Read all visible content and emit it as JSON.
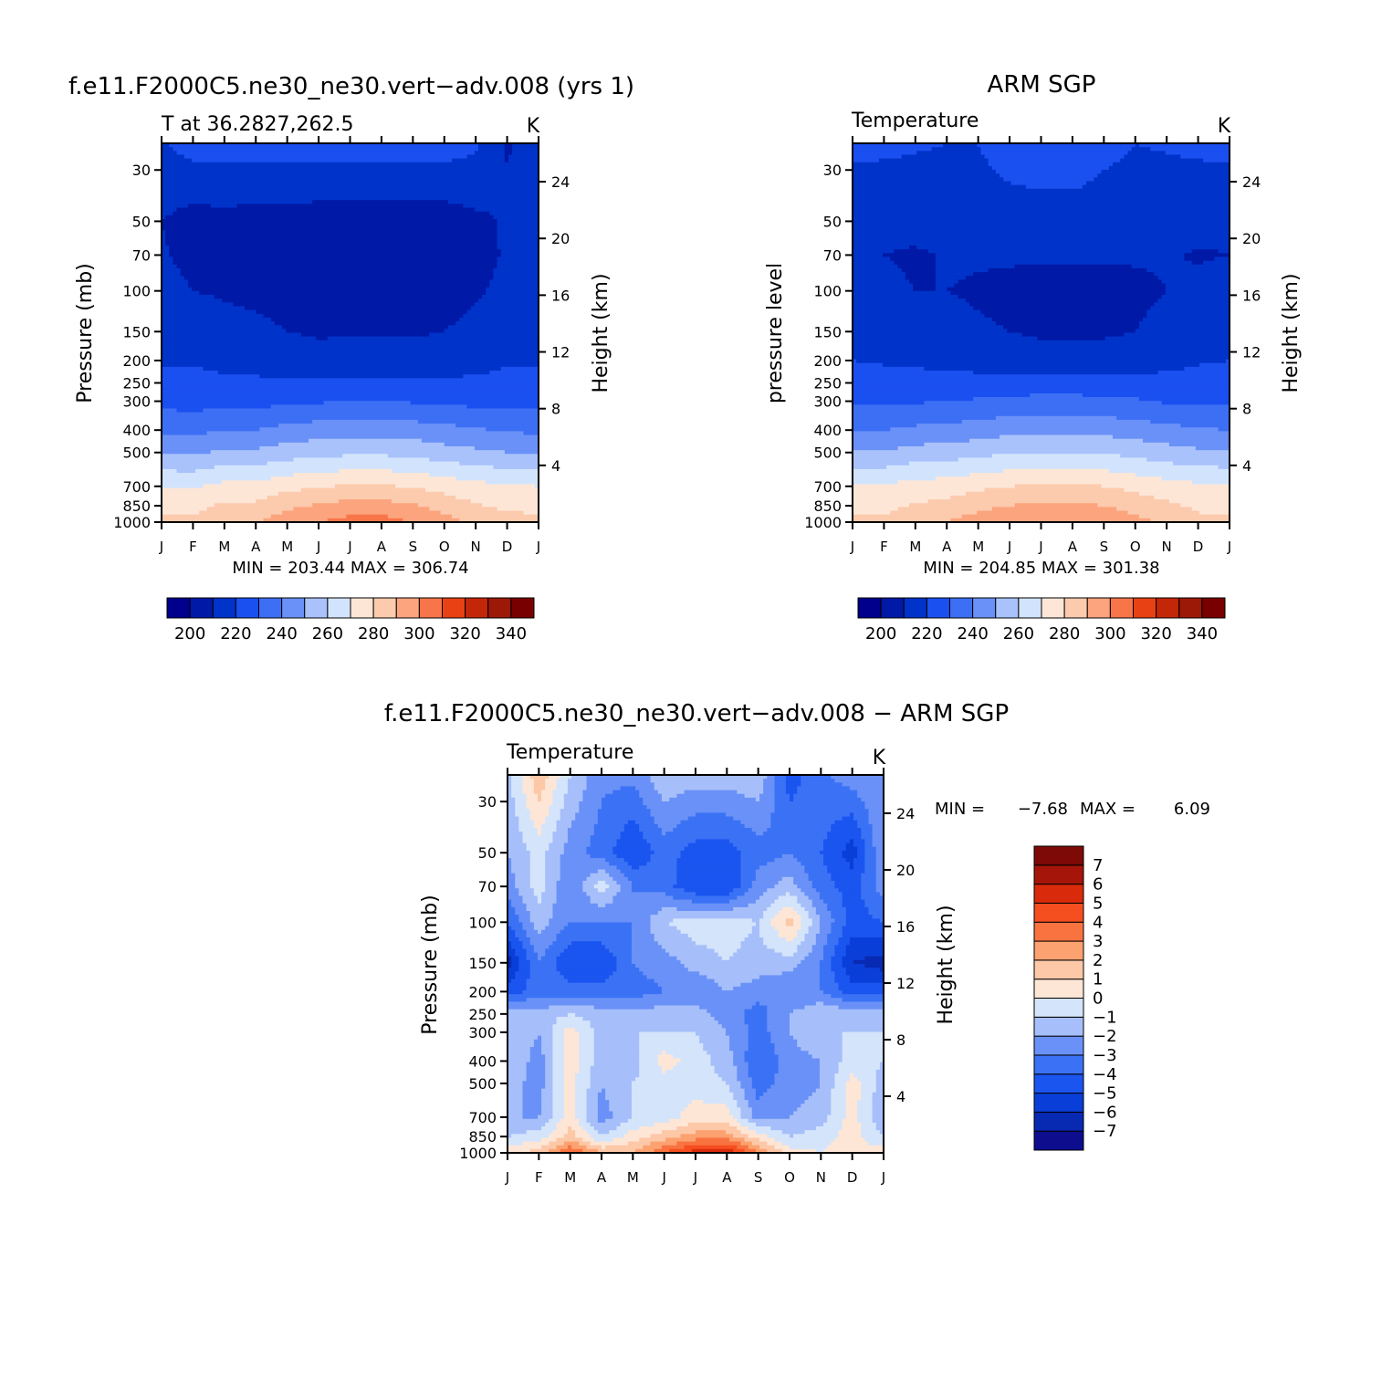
{
  "palette": {
    "temperature": [
      "#00008c",
      "#0019a6",
      "#0033c9",
      "#1a4ff0",
      "#3d6ff5",
      "#6a91f7",
      "#a9c2fb",
      "#d2e4fd",
      "#fde6d6",
      "#fccaad",
      "#fca47d",
      "#f8754a",
      "#e84214",
      "#c42608",
      "#9c1908",
      "#780000"
    ],
    "difference": [
      "#0d0d8e",
      "#0829b2",
      "#0a3ed8",
      "#1a55f0",
      "#3b72f5",
      "#6a91f7",
      "#a6bffa",
      "#d4e4fb",
      "#fde6d6",
      "#fdc8a8",
      "#fba270",
      "#f87340",
      "#f54e1f",
      "#d92a0c",
      "#a61509",
      "#7d0a06"
    ]
  },
  "panels": [
    {
      "id": "model",
      "title": "f.e11.F2000C5.ne30_ne30.vert−adv.008 (yrs 1)",
      "left_label": "T at 36.2827,262.5",
      "right_label": "K",
      "ylabel": "Pressure (mb)",
      "ylabel_right": "Height (km)",
      "minmax": "MIN = 203.44 MAX = 306.74"
    },
    {
      "id": "obs",
      "title": "ARM SGP",
      "left_label": "Temperature",
      "right_label": "K",
      "ylabel": "pressure level",
      "ylabel_right": "Height (km)",
      "minmax": "MIN = 204.85 MAX = 301.38"
    },
    {
      "id": "diff",
      "title": "f.e11.F2000C5.ne30_ne30.vert−adv.008 − ARM SGP",
      "left_label": "Temperature",
      "right_label": "K",
      "ylabel": "Pressure (mb)",
      "ylabel_right": "Height (km)",
      "minmax_min": "MIN =",
      "minmax_min_val": "−7.68",
      "minmax_max": "MAX =",
      "minmax_max_val": "6.09"
    }
  ],
  "chart_data": [
    {
      "type": "heatmap",
      "title": "f.e11.F2000C5.ne30_ne30.vert−adv.008 (yrs 1)",
      "variable": "T at 36.2827,262.5",
      "units": "K",
      "xlabel": "",
      "ylabel": "Pressure (mb)",
      "ylabel_right": "Height (km)",
      "x_ticks": [
        "J",
        "F",
        "M",
        "A",
        "M",
        "J",
        "J",
        "A",
        "S",
        "O",
        "N",
        "D",
        "J"
      ],
      "y_ticks": [
        30,
        50,
        70,
        100,
        150,
        200,
        250,
        300,
        400,
        500,
        700,
        850,
        1000
      ],
      "y_ticks_right": [
        24,
        20,
        16,
        12,
        8,
        4
      ],
      "y_scale": "log",
      "ylim": [
        1000,
        23
      ],
      "colorbar_levels": [
        195,
        200,
        205,
        210,
        215,
        220,
        225,
        230,
        235,
        240,
        245,
        250,
        255,
        260,
        265,
        270,
        275,
        280,
        285,
        290,
        295,
        300,
        305,
        310,
        315,
        320,
        325,
        330,
        335,
        340,
        345
      ],
      "colorbar_labels": [
        "200",
        "220",
        "240",
        "260",
        "280",
        "300",
        "320",
        "340"
      ],
      "min": 203.44,
      "max": 306.74,
      "months": [
        "Jan",
        "Feb",
        "Mar",
        "Apr",
        "May",
        "Jun",
        "Jul",
        "Aug",
        "Sep",
        "Oct",
        "Nov",
        "Dec",
        "Jan"
      ],
      "levels_mb": [
        30,
        50,
        70,
        100,
        150,
        200,
        250,
        300,
        400,
        500,
        700,
        850,
        1000
      ],
      "values": [
        [
          216,
          218,
          218,
          218,
          218,
          218,
          218,
          218,
          218,
          218,
          217,
          210,
          212
        ],
        [
          210,
          206,
          207,
          206,
          206,
          205,
          205,
          205,
          205,
          205,
          208,
          211,
          210
        ],
        [
          211,
          207,
          206,
          205,
          205,
          205,
          205,
          205,
          205,
          205,
          207,
          211,
          211
        ],
        [
          214,
          210,
          209,
          208,
          207,
          206,
          206,
          206,
          206,
          207,
          209,
          212,
          214
        ],
        [
          217,
          215,
          213,
          212,
          210,
          209,
          209,
          209,
          209,
          210,
          212,
          215,
          217
        ],
        [
          219,
          219,
          217,
          216,
          214,
          213,
          214,
          214,
          214,
          214,
          216,
          219,
          219
        ],
        [
          223,
          223,
          222,
          222,
          221,
          222,
          222,
          222,
          222,
          222,
          222,
          223,
          223
        ],
        [
          227,
          226,
          227,
          227,
          228,
          229,
          230,
          230,
          229,
          228,
          227,
          226,
          227
        ],
        [
          238,
          237,
          240,
          240,
          243,
          245,
          246,
          246,
          245,
          243,
          241,
          239,
          238
        ],
        [
          249,
          248,
          252,
          252,
          255,
          257,
          258,
          258,
          257,
          254,
          252,
          250,
          249
        ],
        [
          270,
          269,
          273,
          273,
          277,
          279,
          281,
          281,
          279,
          276,
          273,
          271,
          270
        ],
        [
          277,
          276,
          282,
          282,
          288,
          291,
          294,
          294,
          291,
          286,
          281,
          278,
          277
        ],
        [
          283,
          282,
          288,
          289,
          296,
          300,
          304,
          304,
          300,
          294,
          288,
          284,
          283
        ]
      ]
    },
    {
      "type": "heatmap",
      "title": "ARM SGP",
      "variable": "Temperature",
      "units": "K",
      "xlabel": "",
      "ylabel": "pressure level",
      "ylabel_right": "Height (km)",
      "x_ticks": [
        "J",
        "F",
        "M",
        "A",
        "M",
        "J",
        "J",
        "A",
        "S",
        "O",
        "N",
        "D",
        "J"
      ],
      "y_ticks": [
        30,
        50,
        70,
        100,
        150,
        200,
        250,
        300,
        400,
        500,
        700,
        850,
        1000
      ],
      "y_ticks_right": [
        24,
        20,
        16,
        12,
        8,
        4
      ],
      "y_scale": "log",
      "ylim": [
        1000,
        23
      ],
      "colorbar_levels": [
        195,
        200,
        205,
        210,
        215,
        220,
        225,
        230,
        235,
        240,
        245,
        250,
        255,
        260,
        265,
        270,
        275,
        280,
        285,
        290,
        295,
        300,
        305,
        310,
        315,
        320,
        325,
        330,
        335,
        340,
        345
      ],
      "colorbar_labels": [
        "200",
        "220",
        "240",
        "260",
        "280",
        "300",
        "320",
        "340"
      ],
      "min": 204.85,
      "max": 301.38,
      "months": [
        "Jan",
        "Feb",
        "Mar",
        "Apr",
        "May",
        "Jun",
        "Jul",
        "Aug",
        "Sep",
        "Oct",
        "Nov",
        "Dec",
        "Jan"
      ],
      "levels_mb": [
        30,
        50,
        70,
        100,
        150,
        200,
        250,
        300,
        400,
        500,
        700,
        850,
        1000
      ],
      "values": [
        [
          219,
          219,
          219,
          219,
          219,
          221,
          222,
          222,
          220,
          219,
          219,
          219,
          219
        ],
        [
          212,
          214,
          216,
          217,
          217,
          217,
          217,
          217,
          217,
          217,
          216,
          214,
          212
        ],
        [
          210,
          210,
          208,
          211,
          211,
          211,
          211,
          211,
          211,
          211,
          211,
          209,
          210
        ],
        [
          214,
          213,
          210,
          210,
          209,
          208,
          207,
          207,
          207,
          208,
          210,
          213,
          214
        ],
        [
          217,
          216,
          215,
          213,
          211,
          210,
          209,
          209,
          209,
          210,
          213,
          216,
          217
        ],
        [
          220,
          219,
          218,
          217,
          215,
          214,
          213,
          213,
          213,
          214,
          216,
          219,
          220
        ],
        [
          224,
          224,
          224,
          224,
          224,
          224,
          225,
          225,
          224,
          224,
          224,
          224,
          224
        ],
        [
          228,
          228,
          229,
          230,
          231,
          232,
          233,
          233,
          232,
          231,
          229,
          228,
          228
        ],
        [
          240,
          240,
          242,
          243,
          245,
          247,
          248,
          248,
          247,
          245,
          243,
          241,
          240
        ],
        [
          251,
          251,
          254,
          255,
          257,
          259,
          260,
          260,
          259,
          257,
          254,
          252,
          251
        ],
        [
          271,
          271,
          274,
          275,
          278,
          280,
          281,
          281,
          280,
          277,
          274,
          272,
          271
        ],
        [
          277,
          277,
          281,
          283,
          287,
          290,
          292,
          292,
          290,
          286,
          282,
          278,
          277
        ],
        [
          282,
          282,
          287,
          290,
          295,
          298,
          301,
          301,
          298,
          293,
          288,
          283,
          282
        ]
      ]
    },
    {
      "type": "heatmap",
      "title": "f.e11.F2000C5.ne30_ne30.vert−adv.008 − ARM SGP",
      "variable": "Temperature",
      "units": "K",
      "xlabel": "",
      "ylabel": "Pressure (mb)",
      "ylabel_right": "Height (km)",
      "x_ticks": [
        "J",
        "F",
        "M",
        "A",
        "M",
        "J",
        "J",
        "A",
        "S",
        "O",
        "N",
        "D",
        "J"
      ],
      "y_ticks": [
        30,
        50,
        70,
        100,
        150,
        200,
        250,
        300,
        400,
        500,
        700,
        850,
        1000
      ],
      "y_ticks_right": [
        24,
        20,
        16,
        12,
        8,
        4
      ],
      "y_scale": "log",
      "ylim": [
        1000,
        23
      ],
      "colorbar_levels": [
        -8,
        -7,
        -6,
        -5,
        -4,
        -3,
        -2,
        -1,
        0,
        1,
        2,
        3,
        4,
        5,
        6,
        7,
        8
      ],
      "colorbar_labels": [
        "7",
        "6",
        "5",
        "4",
        "3",
        "2",
        "1",
        "0",
        "−1",
        "−2",
        "−3",
        "−4",
        "−5",
        "−6",
        "−7"
      ],
      "colorbar_orientation": "vertical",
      "min": -7.68,
      "max": 6.09,
      "months": [
        "Jan",
        "Feb",
        "Mar",
        "Apr",
        "May",
        "Jun",
        "Jul",
        "Aug",
        "Sep",
        "Oct",
        "Nov",
        "Dec",
        "Jan"
      ],
      "levels_mb": [
        30,
        50,
        70,
        100,
        150,
        200,
        250,
        300,
        400,
        500,
        700,
        850,
        1000
      ],
      "values": [
        [
          -1.5,
          1.0,
          -1.5,
          -3.0,
          -3.5,
          -2.0,
          -2.5,
          -2.5,
          -2.0,
          -4.0,
          -3.5,
          -3.5,
          -2.0
        ],
        [
          -2.0,
          -0.5,
          -2.5,
          -3.5,
          -5.0,
          -3.5,
          -4.5,
          -4.5,
          -3.5,
          -3.0,
          -4.0,
          -5.5,
          -2.0
        ],
        [
          -2.5,
          -0.5,
          -3.0,
          -0.5,
          -3.0,
          -3.5,
          -5.0,
          -5.0,
          -2.5,
          -1.5,
          -3.5,
          -4.5,
          -2.5
        ],
        [
          -4.0,
          -1.5,
          -3.0,
          -3.0,
          -3.0,
          -1.0,
          -0.5,
          -0.5,
          -1.0,
          1.5,
          -2.0,
          -4.5,
          -4.0
        ],
        [
          -6.5,
          -3.0,
          -5.0,
          -5.0,
          -3.0,
          -2.5,
          -1.5,
          -1.0,
          -1.5,
          -1.5,
          -3.0,
          -6.0,
          -6.5
        ],
        [
          -4.5,
          -3.5,
          -3.5,
          -3.5,
          -3.5,
          -3.0,
          -3.0,
          -2.0,
          -2.5,
          -3.0,
          -3.0,
          -4.5,
          -4.5
        ],
        [
          -1.5,
          -1.5,
          -1.0,
          -1.5,
          -1.5,
          -1.5,
          -1.5,
          -2.5,
          -3.5,
          -2.0,
          -1.0,
          -1.5,
          -1.5
        ],
        [
          -1.0,
          -2.0,
          0.5,
          -1.5,
          -1.0,
          -1.0,
          -1.0,
          -2.0,
          -3.5,
          -2.0,
          -1.0,
          -1.0,
          -1.0
        ],
        [
          -1.0,
          -2.5,
          0.5,
          -1.5,
          -1.5,
          0.5,
          -0.5,
          -1.5,
          -4.0,
          -2.5,
          -2.0,
          -0.5,
          -1.0
        ],
        [
          -1.5,
          -2.5,
          0.5,
          -2.0,
          -1.0,
          -0.5,
          -0.5,
          -1.0,
          -3.5,
          -2.5,
          -2.0,
          0.5,
          -1.5
        ],
        [
          -2.0,
          -2.0,
          0.5,
          -2.5,
          -1.0,
          -0.5,
          0.5,
          0.5,
          -2.5,
          -2.0,
          -1.5,
          0.5,
          -2.0
        ],
        [
          -1.0,
          -0.5,
          1.5,
          -1.0,
          0.5,
          1.5,
          2.5,
          2.5,
          0.5,
          -1.0,
          -0.5,
          0.5,
          -1.0
        ],
        [
          0.5,
          1.5,
          4.0,
          2.0,
          2.0,
          4.0,
          5.5,
          6.0,
          3.0,
          0.5,
          0.0,
          0.5,
          0.5
        ]
      ]
    }
  ]
}
